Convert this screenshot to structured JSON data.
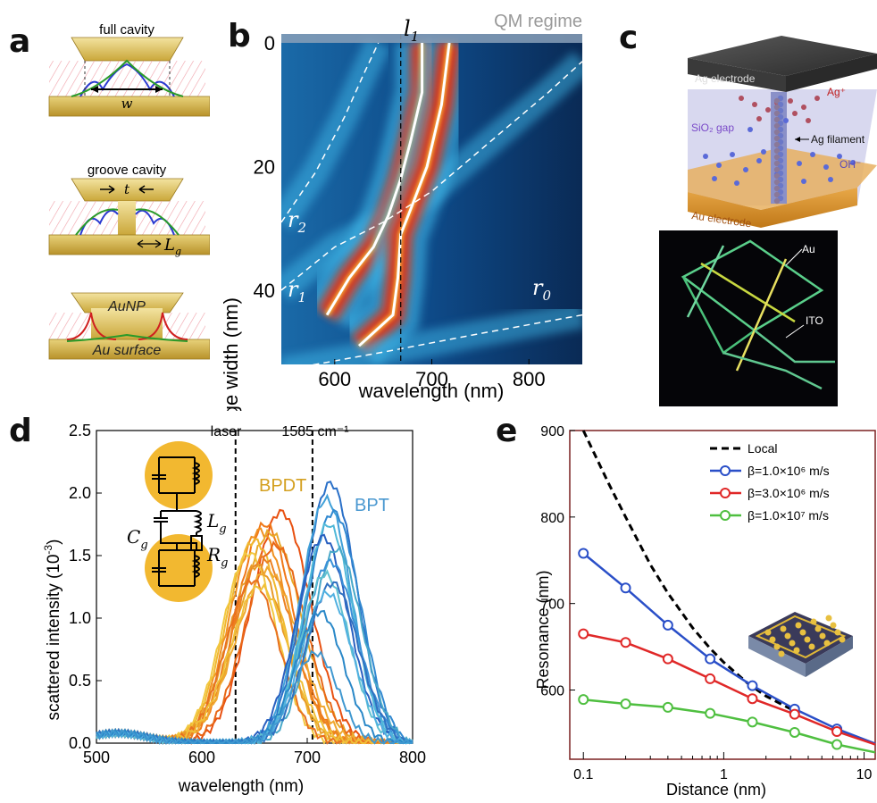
{
  "panels": {
    "a": {
      "letter": "a",
      "cavity1_label": "full cavity",
      "cavity1_width_symbol": "w",
      "cavity2_label": "groove cavity",
      "cavity2_gap_symbol": "t",
      "cavity2_groove_symbol": "L",
      "cavity2_groove_sub": "g",
      "np_label": "AuNP",
      "surface_label": "Au surface"
    },
    "b": {
      "letter": "b",
      "regime_label": "QM regime",
      "line_label_l": "l",
      "line_label_l_sub": "1",
      "r0": "r",
      "r0_sub": "0",
      "r1": "r",
      "r1_sub": "1",
      "r2": "r",
      "r2_sub": "2",
      "xlabel": "wavelength (nm)",
      "ylabel": "bridge width (nm)"
    },
    "c": {
      "letter": "c",
      "ag_electrode": "Ag electrode",
      "ag_ion": "Ag⁺",
      "sio2_gap": "SiO₂ gap",
      "ag_filament": "Ag filament",
      "oh_ion": "OH⁻",
      "au_electrode": "Au electrode",
      "micro_au": "Au",
      "micro_ito": "ITO"
    },
    "d": {
      "letter": "d",
      "laser_label": "laser",
      "raman_label": "1585 cm⁻¹",
      "bpdt_label": "BPDT",
      "bpt_label": "BPT",
      "c_symbol": "C",
      "c_sub": "g",
      "l_symbol": "L",
      "l_sub": "g",
      "r_symbol": "R",
      "r_sub": "g",
      "xlabel": "wavelength (nm)",
      "ylabel": "scattered intensity (10",
      "ylabel_exp": "-3",
      "ylabel_close": ")"
    },
    "e": {
      "letter": "e",
      "xlabel": "Distance (nm)",
      "ylabel": "Resonance (nm)"
    }
  },
  "colors": {
    "heat_dark": "#0a2a55",
    "heat_cyan": "#3fb8e8",
    "heat_red": "#d01818",
    "au_gold": "#d9b030",
    "bpdt": "#e88a1a",
    "bpt": "#3a8fd0",
    "local": "#000000",
    "beta1": "#2a4fc8",
    "beta2": "#e02828",
    "beta3": "#4fbf40"
  },
  "chart_data": [
    {
      "id": "b",
      "type": "heatmap",
      "xlabel": "wavelength (nm)",
      "ylabel": "bridge width (nm)",
      "xlim": [
        545,
        855
      ],
      "ylim": [
        0,
        52
      ],
      "ylim_inverted": true,
      "x_ticks": [
        600,
        700,
        800
      ],
      "y_ticks": [
        0,
        20,
        40
      ],
      "vertical_line_x": 668,
      "band_label": "QM regime",
      "curves": [
        {
          "name": "r2",
          "points": [
            [
              545,
              29
            ],
            [
              580,
              21
            ],
            [
              610,
              12
            ],
            [
              630,
              5
            ],
            [
              645,
              0
            ]
          ]
        },
        {
          "name": "r1",
          "points": [
            [
              545,
              40
            ],
            [
              600,
              33
            ],
            [
              650,
              29
            ],
            [
              700,
              24
            ],
            [
              760,
              16
            ],
            [
              820,
              8
            ],
            [
              855,
              3
            ]
          ]
        },
        {
          "name": "mode1",
          "points": [
            [
              690,
              0
            ],
            [
              690,
              8
            ],
            [
              678,
              16
            ],
            [
              668,
              22
            ],
            [
              655,
              28
            ],
            [
              640,
              33
            ],
            [
              615,
              38
            ],
            [
              592,
              44
            ]
          ]
        },
        {
          "name": "mode2",
          "points": [
            [
              718,
              0
            ],
            [
              710,
              10
            ],
            [
              695,
              20
            ],
            [
              678,
              27
            ],
            [
              668,
              31
            ],
            [
              665,
              38
            ],
            [
              660,
              44
            ],
            [
              625,
              49
            ]
          ]
        },
        {
          "name": "r0",
          "points": [
            [
              545,
              53
            ],
            [
              650,
              50
            ],
            [
              750,
              47
            ],
            [
              855,
              44
            ]
          ]
        }
      ]
    },
    {
      "id": "d",
      "type": "line",
      "xlabel": "wavelength (nm)",
      "ylabel": "scattered intensity (10-3)",
      "xlim": [
        500,
        800
      ],
      "ylim": [
        0,
        2.5
      ],
      "x_ticks": [
        500,
        600,
        700,
        800
      ],
      "y_ticks": [
        0.0,
        0.5,
        1.0,
        1.5,
        2.0,
        2.5
      ],
      "markers_x": [
        632,
        705
      ],
      "series": [
        {
          "name": "BPDT",
          "color": "#e88a1a",
          "spectra": [
            {
              "peak": 675,
              "amp": 1.85,
              "width": 40
            },
            {
              "peak": 660,
              "amp": 1.75,
              "width": 38
            },
            {
              "peak": 655,
              "amp": 1.7,
              "width": 40
            },
            {
              "peak": 665,
              "amp": 1.68,
              "width": 42
            },
            {
              "peak": 650,
              "amp": 1.62,
              "width": 38
            },
            {
              "peak": 670,
              "amp": 1.58,
              "width": 40
            },
            {
              "peak": 645,
              "amp": 1.52,
              "width": 36
            },
            {
              "peak": 658,
              "amp": 1.48,
              "width": 40
            },
            {
              "peak": 652,
              "amp": 1.42,
              "width": 38
            },
            {
              "peak": 662,
              "amp": 1.38,
              "width": 42
            },
            {
              "peak": 648,
              "amp": 1.3,
              "width": 36
            },
            {
              "peak": 655,
              "amp": 1.25,
              "width": 40
            }
          ]
        },
        {
          "name": "BPT",
          "color": "#3a8fd0",
          "spectra": [
            {
              "peak": 722,
              "amp": 2.08,
              "width": 35
            },
            {
              "peak": 718,
              "amp": 1.95,
              "width": 34
            },
            {
              "peak": 725,
              "amp": 1.85,
              "width": 36
            },
            {
              "peak": 720,
              "amp": 1.75,
              "width": 33
            },
            {
              "peak": 715,
              "amp": 1.65,
              "width": 35
            },
            {
              "peak": 728,
              "amp": 1.55,
              "width": 34
            },
            {
              "peak": 722,
              "amp": 1.45,
              "width": 36
            },
            {
              "peak": 717,
              "amp": 1.35,
              "width": 33
            },
            {
              "peak": 724,
              "amp": 1.28,
              "width": 35
            },
            {
              "peak": 719,
              "amp": 1.2,
              "width": 34
            },
            {
              "peak": 712,
              "amp": 1.05,
              "width": 32
            },
            {
              "peak": 708,
              "amp": 0.72,
              "width": 30
            }
          ]
        }
      ]
    },
    {
      "id": "e",
      "type": "line",
      "xlabel": "Distance (nm)",
      "ylabel": "Resonance (nm)",
      "x_scale": "log",
      "xlim": [
        0.08,
        12
      ],
      "ylim": [
        520,
        900
      ],
      "x_ticks": [
        0.1,
        1,
        10
      ],
      "x_tick_labels": [
        "0.1",
        "1",
        "10"
      ],
      "y_ticks": [
        600,
        700,
        800,
        900
      ],
      "legend_position": "top-right",
      "series": [
        {
          "name": "Local",
          "style": "dashed",
          "color": "#000000",
          "x": [
            0.1,
            0.15,
            0.2,
            0.3,
            0.4,
            0.6,
            0.8,
            1.0,
            1.5,
            2.0,
            3.0
          ],
          "y": [
            900,
            840,
            800,
            745,
            712,
            672,
            648,
            632,
            607,
            593,
            578
          ]
        },
        {
          "name": "β=1.0×10⁶ m/s",
          "color": "#2a4fc8",
          "marker": "circle",
          "x": [
            0.1,
            0.2,
            0.4,
            0.8,
            1.6,
            3.2,
            6.4,
            12
          ],
          "y": [
            758,
            718,
            675,
            636,
            605,
            578,
            555,
            538
          ]
        },
        {
          "name": "β=3.0×10⁶ m/s",
          "color": "#e02828",
          "marker": "circle",
          "x": [
            0.1,
            0.2,
            0.4,
            0.8,
            1.6,
            3.2,
            6.4,
            12
          ],
          "y": [
            665,
            655,
            636,
            613,
            590,
            572,
            552,
            537
          ]
        },
        {
          "name": "β=1.0×10⁷ m/s",
          "color": "#4fbf40",
          "marker": "circle",
          "x": [
            0.1,
            0.2,
            0.4,
            0.8,
            1.6,
            3.2,
            6.4,
            12
          ],
          "y": [
            589,
            584,
            580,
            573,
            563,
            551,
            537,
            528
          ]
        }
      ]
    }
  ]
}
